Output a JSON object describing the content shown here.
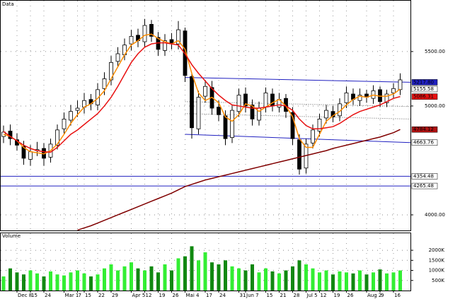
{
  "chart_data": {
    "type": "candlestick",
    "title": "Data",
    "volume_title": "Volume",
    "categories": [
      null,
      null,
      "Dec 8",
      null,
      "15",
      null,
      "24",
      null,
      null,
      "Mar 1",
      null,
      "7",
      "15",
      null,
      "22",
      null,
      "29",
      null,
      null,
      "Apr 5",
      null,
      "12",
      null,
      "19",
      null,
      "26",
      null,
      "Mai 4",
      null,
      null,
      "17",
      null,
      "24",
      null,
      null,
      "31",
      "Jun 7",
      null,
      null,
      "15",
      null,
      "21",
      null,
      "28",
      null,
      "Jul 5",
      null,
      "12",
      null,
      "19",
      null,
      "26",
      null,
      null,
      "Aug 2",
      null,
      "9",
      null,
      "16",
      null
    ],
    "open": [
      4720,
      4770,
      4690,
      4630,
      4510,
      4590,
      4610,
      4530,
      4640,
      4790,
      4870,
      4960,
      4990,
      5060,
      5010,
      5160,
      5240,
      5410,
      5470,
      5570,
      5650,
      5590,
      5750,
      5630,
      5510,
      5610,
      5570,
      5690,
      5270,
      4790,
      5090,
      5170,
      4990,
      4910,
      4710,
      4950,
      5110,
      5010,
      4870,
      4990,
      5110,
      4990,
      5070,
      4940,
      4690,
      4430,
      4660,
      4770,
      4890,
      4950,
      4910,
      5030,
      5110,
      5050,
      5110,
      5070,
      5150,
      5030,
      5120,
      5150
    ],
    "high": [
      4820,
      4830,
      4750,
      4680,
      4640,
      4670,
      4660,
      4700,
      4830,
      4940,
      5010,
      5050,
      5120,
      5110,
      5210,
      5310,
      5460,
      5540,
      5620,
      5700,
      5710,
      5800,
      5790,
      5680,
      5660,
      5670,
      5780,
      5720,
      5300,
      5140,
      5240,
      5230,
      5050,
      4960,
      5010,
      5160,
      5170,
      5060,
      5040,
      5170,
      5160,
      5120,
      5110,
      4990,
      4740,
      4700,
      4830,
      4930,
      5010,
      5000,
      5070,
      5180,
      5160,
      5160,
      5150,
      5190,
      5180,
      5150,
      5210,
      5300
    ],
    "low": [
      4660,
      4640,
      4590,
      4460,
      4450,
      4540,
      4450,
      4480,
      4600,
      4740,
      4820,
      4900,
      4930,
      4960,
      4960,
      5100,
      5190,
      5360,
      5420,
      5510,
      5540,
      5540,
      5590,
      5460,
      5460,
      5520,
      5520,
      5220,
      4700,
      4740,
      5030,
      4920,
      4860,
      4640,
      4660,
      4900,
      4940,
      4820,
      4820,
      4940,
      4950,
      4940,
      4890,
      4640,
      4370,
      4380,
      4610,
      4720,
      4840,
      4850,
      4860,
      4980,
      5010,
      5000,
      5030,
      5020,
      4990,
      4990,
      5070,
      5100
    ],
    "close": [
      4760,
      4700,
      4640,
      4520,
      4580,
      4600,
      4520,
      4650,
      4780,
      4880,
      4950,
      4980,
      5050,
      5020,
      5150,
      5250,
      5400,
      5480,
      5560,
      5640,
      5600,
      5740,
      5640,
      5520,
      5600,
      5580,
      5700,
      5280,
      4800,
      5080,
      5180,
      4980,
      4920,
      4700,
      4960,
      5100,
      5000,
      4880,
      4980,
      5120,
      5000,
      5060,
      4950,
      4700,
      4420,
      4650,
      4780,
      4880,
      4960,
      4900,
      5020,
      5120,
      5060,
      5100,
      5080,
      5140,
      5040,
      5110,
      5160,
      5240
    ],
    "ylim": [
      3857,
      5967
    ],
    "yticks": [
      {
        "value": 5500,
        "label": "5500.00"
      },
      {
        "value": 5000,
        "label": "5000.00"
      },
      {
        "value": 4000,
        "label": "4000.00"
      }
    ],
    "moving_averages": [
      {
        "color": "#ff8c00",
        "end_label": "5155.58",
        "label_color": "#ffffff",
        "values": [
          4740,
          4720,
          4680,
          4620,
          4580,
          4570,
          4560,
          4590,
          4650,
          4740,
          4840,
          4920,
          4990,
          5020,
          5070,
          5140,
          5250,
          5360,
          5470,
          5560,
          5600,
          5650,
          5660,
          5620,
          5590,
          5570,
          5600,
          5520,
          5300,
          5120,
          5050,
          5080,
          5030,
          4900,
          4860,
          4920,
          5020,
          5000,
          4950,
          4990,
          5030,
          5060,
          5000,
          4900,
          4700,
          4620,
          4620,
          4740,
          4860,
          4910,
          4950,
          5010,
          5060,
          5090,
          5080,
          5100,
          5090,
          5090,
          5110,
          5155.58
        ]
      },
      {
        "color": "#e81010",
        "end_label": "5086.31",
        "label_color": "#e81010",
        "values": [
          4766,
          4720,
          4680,
          4640,
          4610,
          4590,
          4580,
          4575,
          4620,
          4680,
          4740,
          4780,
          4830,
          4880,
          4930,
          5000,
          5080,
          5180,
          5290,
          5400,
          5480,
          5540,
          5570,
          5580,
          5580,
          5570,
          5560,
          5480,
          5380,
          5300,
          5230,
          5160,
          5100,
          5050,
          5010,
          5000,
          4990,
          4980,
          4980,
          4990,
          5000,
          5010,
          5000,
          4960,
          4880,
          4820,
          4790,
          4790,
          4800,
          4810,
          4840,
          4880,
          4920,
          4950,
          4970,
          4990,
          5010,
          5040,
          5070,
          5086.31
        ]
      },
      {
        "color": "#800000",
        "end_label": "4784.12",
        "label_color": "#b01010",
        "values": [
          null,
          null,
          null,
          null,
          null,
          null,
          null,
          null,
          null,
          null,
          null,
          3860,
          3880,
          3900,
          3925,
          3950,
          3975,
          4000,
          4025,
          4050,
          4075,
          4100,
          4125,
          4150,
          4175,
          4200,
          4230,
          4260,
          4280,
          4300,
          4320,
          4335,
          4350,
          4365,
          4380,
          4395,
          4410,
          4425,
          4440,
          4455,
          4470,
          4485,
          4500,
          4515,
          4530,
          4545,
          4560,
          4575,
          4590,
          4610,
          4625,
          4640,
          4655,
          4670,
          4685,
          4700,
          4715,
          4735,
          4755,
          4784.12
        ]
      }
    ],
    "channels": [
      {
        "from": "Mai 4",
        "start": 5262,
        "end": 5217.8,
        "end_label": "5217.80",
        "color": "#2020c0",
        "style": "solid",
        "label_color": "#2020c0"
      },
      {
        "from": "Mai 4",
        "start": 5040,
        "end": 4995,
        "color": "#606060",
        "style": "dotted"
      },
      {
        "from": "Mai 4",
        "start": 4930,
        "end": 4880,
        "color": "#606060",
        "style": "dotted"
      },
      {
        "from": "Mai 4",
        "start": 4740,
        "end": 4663.76,
        "end_label": "4663.76",
        "color": "#2020c0",
        "style": "solid",
        "label_color": "#ffffff"
      }
    ],
    "levels": [
      {
        "value": 4354.48,
        "label": "4354.48",
        "color": "#2020c0"
      },
      {
        "value": 4265.48,
        "label": "4265.48",
        "color": "#2020c0"
      }
    ],
    "volume": [
      700,
      1100,
      900,
      800,
      1000,
      850,
      700,
      950,
      800,
      750,
      900,
      1000,
      850,
      700,
      800,
      1100,
      1300,
      1000,
      1200,
      1400,
      1100,
      1000,
      1200,
      900,
      1300,
      1000,
      1600,
      1700,
      2200,
      1500,
      1900,
      1400,
      1300,
      1500,
      1200,
      1100,
      1000,
      1300,
      900,
      1100,
      950,
      850,
      1000,
      1200,
      1500,
      1300,
      1100,
      900,
      1000,
      800,
      950,
      900,
      850,
      1000,
      800,
      900,
      1050,
      850,
      900,
      1000
    ],
    "volume_ylim": [
      0,
      2740
    ],
    "volume_yticks": [
      {
        "value": 2000,
        "label": "2000K"
      },
      {
        "value": 1500,
        "label": "1500K"
      },
      {
        "value": 1000,
        "label": "1000K"
      },
      {
        "value": 500,
        "label": "500K"
      }
    ],
    "up_color": "#33ee33",
    "down_color": "#118811",
    "grid": true
  }
}
